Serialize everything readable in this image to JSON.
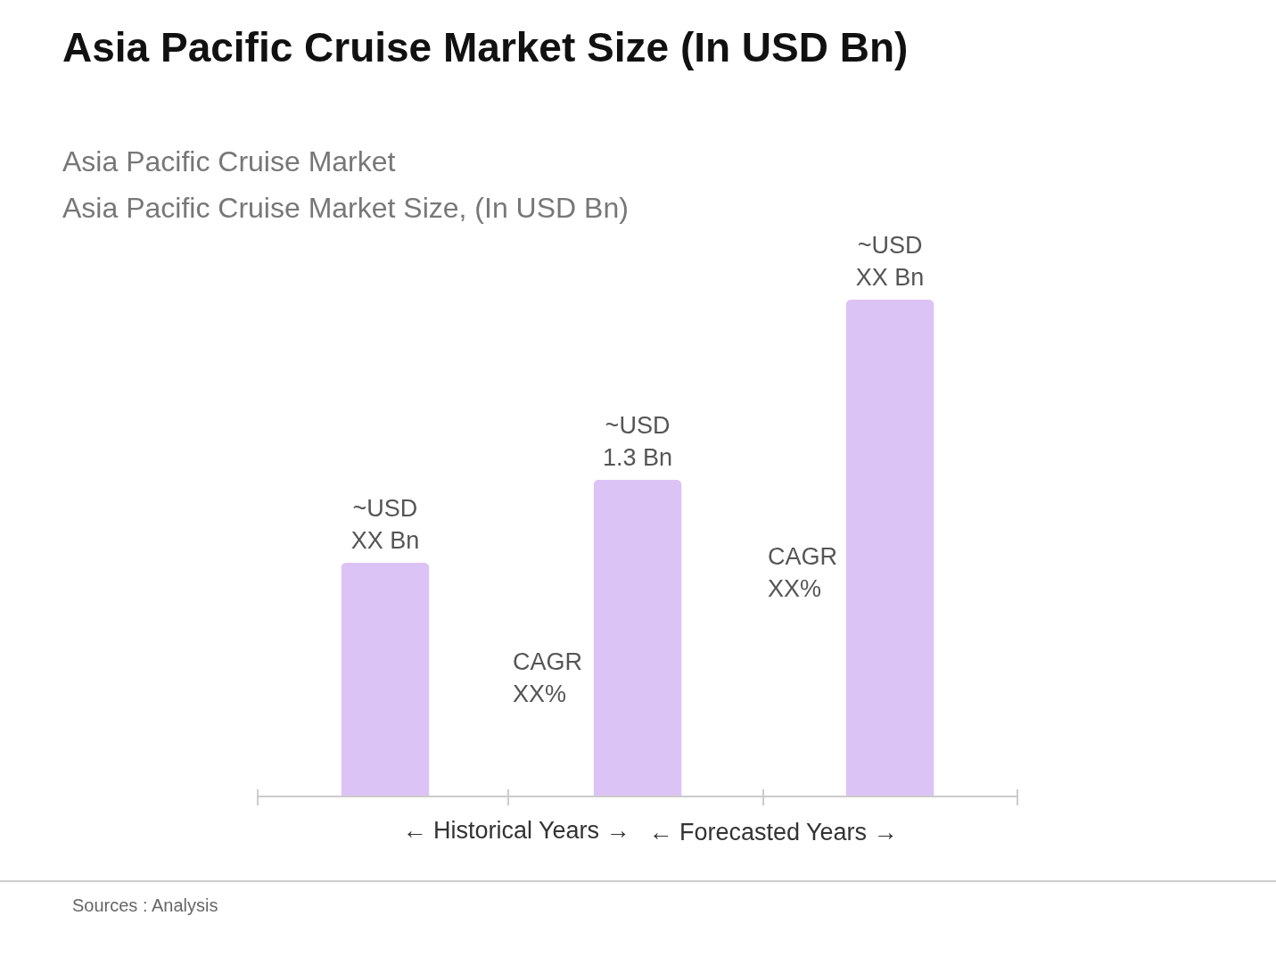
{
  "chart_data": {
    "type": "bar",
    "title": "Asia Pacific Cruise Market Size (In USD Bn)",
    "subtitle": "Asia Pacific Cruise Market\nAsia Pacific Cruise Market Size, (In USD Bn)",
    "categories": [
      null,
      null,
      null
    ],
    "values": [
      0.96,
      1.3,
      2.04
    ],
    "color": "#dcc3f6",
    "value_labels": [
      "~USD XX Bn",
      "~USD 1.3 Bn",
      "~USD XX Bn"
    ],
    "annotations": [
      "CAGR XX%",
      "CAGR XX%",
      "← Historical Years →",
      "← Forecasted Years →",
      "Sources : Analysis"
    ]
  }
}
